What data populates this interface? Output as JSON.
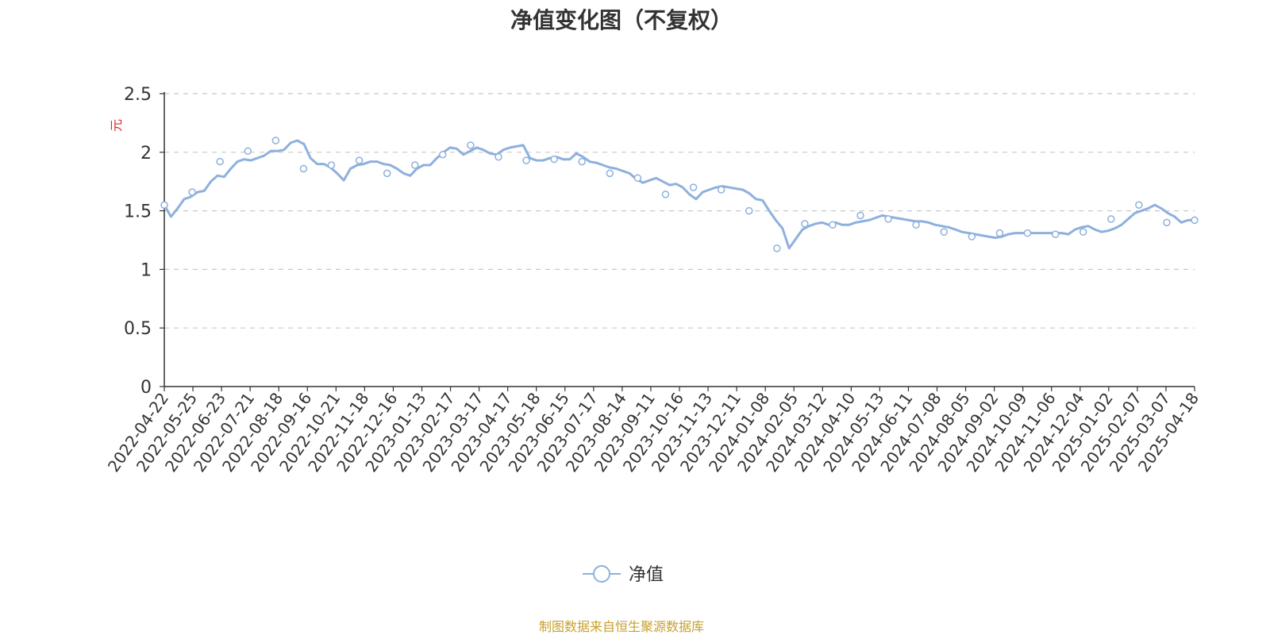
{
  "chart_data": {
    "type": "line",
    "title": "净值变化图（不复权）",
    "ylabel": "元",
    "ylim": [
      0,
      2.5
    ],
    "y_ticks": [
      "0",
      "0.5",
      "1",
      "1.5",
      "2",
      "2.5"
    ],
    "y_tick_values": [
      0,
      0.5,
      1,
      1.5,
      2,
      2.5
    ],
    "x_tick_labels": [
      "2022-04-22",
      "2022-05-25",
      "2022-06-23",
      "2022-07-21",
      "2022-08-18",
      "2022-09-16",
      "2022-10-21",
      "2022-11-18",
      "2022-12-16",
      "2023-01-13",
      "2023-02-17",
      "2023-03-17",
      "2023-04-17",
      "2023-05-18",
      "2023-06-15",
      "2023-07-17",
      "2023-08-14",
      "2023-09-11",
      "2023-10-16",
      "2023-11-13",
      "2023-12-11",
      "2024-01-08",
      "2024-02-05",
      "2024-03-12",
      "2024-04-10",
      "2024-05-13",
      "2024-06-11",
      "2024-07-08",
      "2024-08-05",
      "2024-09-02",
      "2024-10-09",
      "2024-11-06",
      "2024-12-04",
      "2025-01-02",
      "2025-02-07",
      "2025-03-07",
      "2025-04-18"
    ],
    "grid": true,
    "legend_position": "bottom",
    "series": [
      {
        "name": "净值",
        "color": "#8eb0dd",
        "marker": "hollow-circle",
        "values": [
          1.55,
          1.45,
          1.52,
          1.6,
          1.62,
          1.66,
          1.67,
          1.75,
          1.8,
          1.79,
          1.86,
          1.92,
          1.94,
          1.93,
          1.95,
          1.97,
          2.01,
          2.01,
          2.02,
          2.08,
          2.1,
          2.07,
          1.95,
          1.9,
          1.9,
          1.87,
          1.82,
          1.76,
          1.86,
          1.89,
          1.9,
          1.92,
          1.92,
          1.9,
          1.89,
          1.86,
          1.82,
          1.8,
          1.86,
          1.89,
          1.89,
          1.95,
          2.0,
          2.04,
          2.03,
          1.98,
          2.01,
          2.04,
          2.02,
          1.99,
          1.98,
          2.02,
          2.04,
          2.05,
          2.06,
          1.95,
          1.93,
          1.93,
          1.95,
          1.96,
          1.94,
          1.94,
          1.99,
          1.96,
          1.92,
          1.91,
          1.89,
          1.87,
          1.86,
          1.84,
          1.82,
          1.77,
          1.74,
          1.76,
          1.78,
          1.75,
          1.72,
          1.73,
          1.7,
          1.64,
          1.6,
          1.66,
          1.68,
          1.7,
          1.71,
          1.7,
          1.69,
          1.68,
          1.65,
          1.6,
          1.59,
          1.5,
          1.42,
          1.35,
          1.18,
          1.26,
          1.34,
          1.37,
          1.39,
          1.4,
          1.38,
          1.4,
          1.38,
          1.38,
          1.4,
          1.41,
          1.42,
          1.44,
          1.46,
          1.45,
          1.44,
          1.43,
          1.42,
          1.41,
          1.41,
          1.4,
          1.38,
          1.37,
          1.36,
          1.34,
          1.32,
          1.31,
          1.3,
          1.29,
          1.28,
          1.27,
          1.28,
          1.3,
          1.31,
          1.31,
          1.31,
          1.31,
          1.31,
          1.31,
          1.31,
          1.31,
          1.3,
          1.34,
          1.36,
          1.37,
          1.34,
          1.32,
          1.33,
          1.35,
          1.38,
          1.43,
          1.48,
          1.5,
          1.52,
          1.55,
          1.52,
          1.48,
          1.45,
          1.4,
          1.42,
          1.42
        ]
      }
    ],
    "marked_values": [
      1.55,
      1.66,
      1.92,
      2.01,
      2.1,
      1.86,
      1.89,
      1.93,
      1.82,
      1.89,
      1.98,
      2.06,
      1.96,
      1.93,
      1.94,
      1.92,
      1.82,
      1.78,
      1.64,
      1.7,
      1.68,
      1.5,
      1.18,
      1.39,
      1.38,
      1.46,
      1.43,
      1.38,
      1.32,
      1.28,
      1.31,
      1.31,
      1.3,
      1.32,
      1.43,
      1.55,
      1.4,
      1.42
    ]
  },
  "legend": {
    "label": "净值"
  },
  "footer": {
    "source": "制图数据来自恒生聚源数据库"
  }
}
